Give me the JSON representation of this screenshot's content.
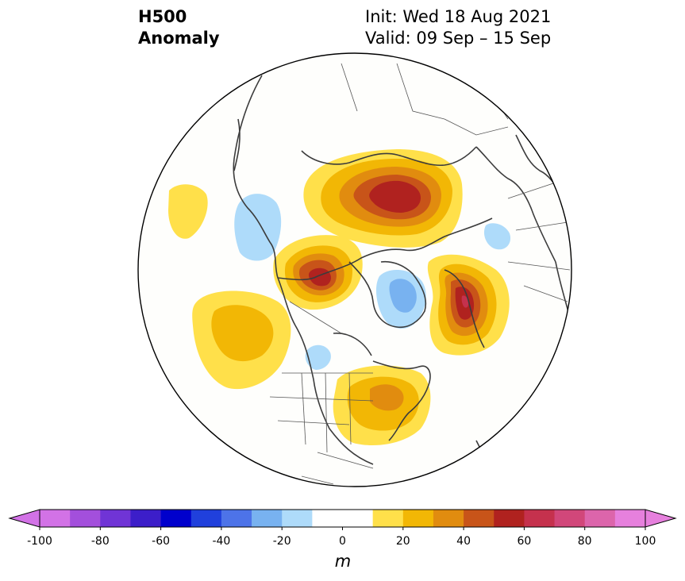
{
  "title": {
    "line1": "H500",
    "line2": "Anomaly"
  },
  "info": {
    "init": "Init: Wed 18 Aug 2021",
    "valid": "Valid: 09 Sep – 15 Sep"
  },
  "colorbar": {
    "unit": "m",
    "ticks": [
      "-100",
      "-80",
      "-60",
      "-40",
      "-20",
      "0",
      "20",
      "40",
      "60",
      "80",
      "100"
    ],
    "levels": [
      {
        "from": -100,
        "to": -90,
        "color": "#d272e6"
      },
      {
        "from": -90,
        "to": -80,
        "color": "#a34fdc"
      },
      {
        "from": -80,
        "to": -70,
        "color": "#7034d6"
      },
      {
        "from": -70,
        "to": -60,
        "color": "#3c1ec9"
      },
      {
        "from": -60,
        "to": -50,
        "color": "#0000cc"
      },
      {
        "from": -50,
        "to": -40,
        "color": "#2040dc"
      },
      {
        "from": -40,
        "to": -30,
        "color": "#4d73e8"
      },
      {
        "from": -30,
        "to": -20,
        "color": "#78b2f0"
      },
      {
        "from": -20,
        "to": -10,
        "color": "#aedbfa"
      },
      {
        "from": -10,
        "to": 10,
        "color": "#ffffff"
      },
      {
        "from": 10,
        "to": 20,
        "color": "#ffe04a"
      },
      {
        "from": 20,
        "to": 30,
        "color": "#f2b705"
      },
      {
        "from": 30,
        "to": 40,
        "color": "#e18c0f"
      },
      {
        "from": 40,
        "to": 50,
        "color": "#c85419"
      },
      {
        "from": 50,
        "to": 60,
        "color": "#b0221f"
      },
      {
        "from": 60,
        "to": 70,
        "color": "#c5314d"
      },
      {
        "from": 70,
        "to": 80,
        "color": "#d1477a"
      },
      {
        "from": 80,
        "to": 90,
        "color": "#dc65ab"
      },
      {
        "from": 90,
        "to": 100,
        "color": "#e680dd"
      }
    ],
    "extend_low_color": "#d272e6",
    "extend_high_color": "#e680dd"
  },
  "anomaly_features": [
    {
      "region": "Siberia / Laptev Sea",
      "sign": "positive",
      "peak_m": 55
    },
    {
      "region": "Scandinavia / Barents Sea",
      "sign": "positive",
      "peak_m": 55
    },
    {
      "region": "Alaska / East Siberian Sea",
      "sign": "positive",
      "peak_m": 45
    },
    {
      "region": "North Pacific",
      "sign": "positive",
      "peak_m": 25
    },
    {
      "region": "Eastern North America",
      "sign": "positive",
      "peak_m": 35
    },
    {
      "region": "Greenland",
      "sign": "negative",
      "peak_m": -35
    },
    {
      "region": "Northeast Asia / Japan",
      "sign": "negative",
      "peak_m": -15
    },
    {
      "region": "Western Canada",
      "sign": "negative",
      "peak_m": -15
    },
    {
      "region": "Northern Europe",
      "sign": "negative",
      "peak_m": -15
    },
    {
      "region": "Subtropical East Asia",
      "sign": "positive",
      "peak_m": 15
    }
  ]
}
